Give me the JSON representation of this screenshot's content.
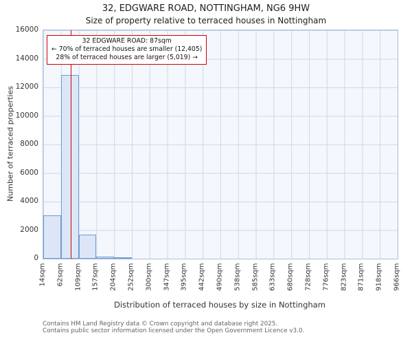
{
  "header": {
    "title": "32, EDGWARE ROAD, NOTTINGHAM, NG6 9HW",
    "subtitle": "Size of property relative to terraced houses in Nottingham"
  },
  "footer": {
    "line1": "Contains HM Land Registry data © Crown copyright and database right 2025.",
    "line2": "Contains public sector information licensed under the Open Government Licence v3.0."
  },
  "chart_data": {
    "type": "bar",
    "title": "32, EDGWARE ROAD, NOTTINGHAM, NG6 9HW",
    "subtitle": "Size of property relative to terraced houses in Nottingham",
    "xlabel": "Distribution of terraced houses by size in Nottingham",
    "ylabel": "Number of terraced properties",
    "x_tick_labels": [
      "14sqm",
      "62sqm",
      "109sqm",
      "157sqm",
      "204sqm",
      "252sqm",
      "300sqm",
      "347sqm",
      "395sqm",
      "442sqm",
      "490sqm",
      "538sqm",
      "585sqm",
      "633sqm",
      "680sqm",
      "728sqm",
      "776sqm",
      "823sqm",
      "871sqm",
      "918sqm",
      "966sqm"
    ],
    "bin_edges_sqm": [
      14,
      62,
      109,
      157,
      204,
      252,
      300,
      347,
      395,
      442,
      490,
      538,
      585,
      633,
      680,
      728,
      776,
      823,
      871,
      918,
      966
    ],
    "values": [
      3050,
      12850,
      1700,
      150,
      60,
      0,
      0,
      0,
      0,
      0,
      0,
      0,
      0,
      0,
      0,
      0,
      0,
      0,
      0,
      0
    ],
    "y_ticks": [
      0,
      2000,
      4000,
      6000,
      8000,
      10000,
      12000,
      14000,
      16000
    ],
    "ylim": [
      0,
      16000
    ],
    "grid": true,
    "legend": "none",
    "marker_value_sqm": 87,
    "marker_color": "#cc0000",
    "bar_fill": "#dce6f6",
    "bar_border": "#6e9cd2",
    "annotation": {
      "line1": "32 EDGWARE ROAD: 87sqm",
      "line2": "← 70% of terraced houses are smaller (12,405)",
      "line3": "28% of terraced houses are larger (5,019) →"
    }
  }
}
